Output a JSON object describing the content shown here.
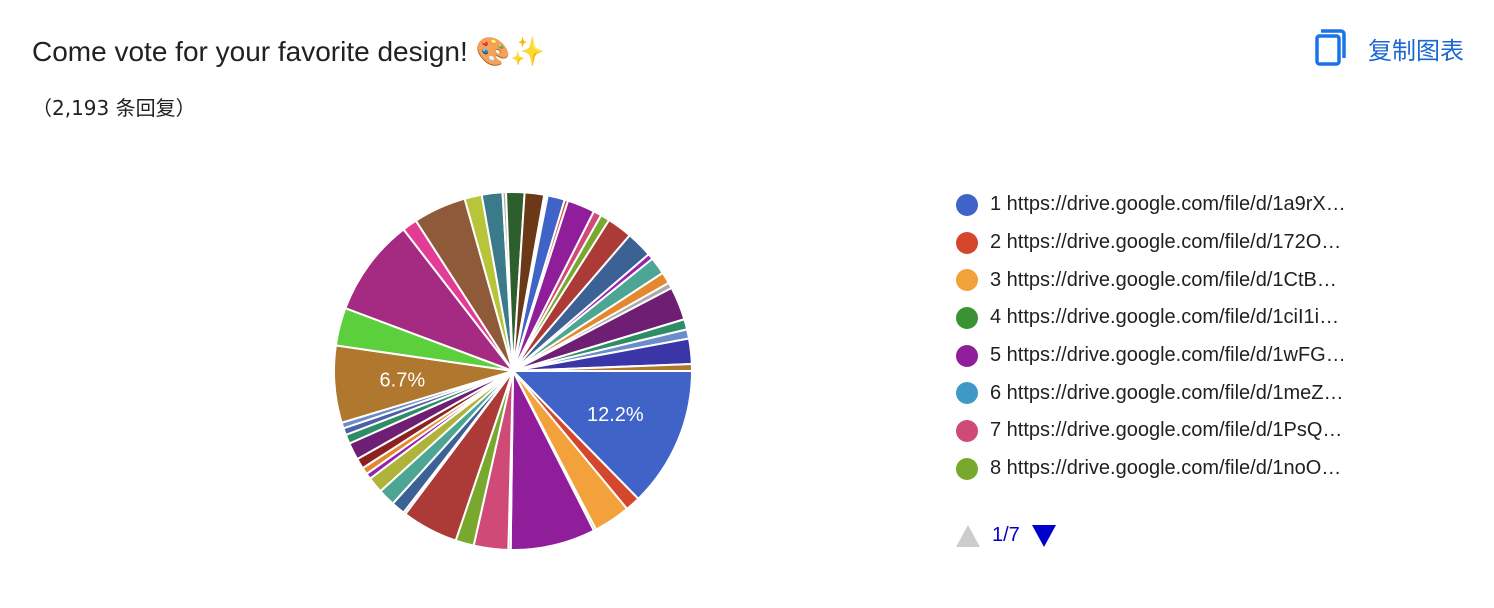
{
  "header": {
    "title": "Come vote for your favorite design! 🎨✨",
    "responses": "（2,193 条回复）",
    "copy_label": "复制图表"
  },
  "icons": {
    "copy": "copy-icon",
    "pager_up": "triangle-up-icon",
    "pager_down": "triangle-down-icon"
  },
  "colors": {
    "accent": "#1a73e8",
    "pager_active": "#0000cc",
    "pager_inactive": "#cccccc"
  },
  "legend": {
    "items": [
      {
        "label": "1 https://drive.google.com/file/d/1a9rX…",
        "color": "#4063c8"
      },
      {
        "label": "2 https://drive.google.com/file/d/172O…",
        "color": "#d4472d"
      },
      {
        "label": "3 https://drive.google.com/file/d/1CtB…",
        "color": "#f2a13b"
      },
      {
        "label": "4 https://drive.google.com/file/d/1ciI1i…",
        "color": "#3a9233"
      },
      {
        "label": "5 https://drive.google.com/file/d/1wFG…",
        "color": "#901d9a"
      },
      {
        "label": "6 https://drive.google.com/file/d/1meZ…",
        "color": "#3f99c6"
      },
      {
        "label": "7 https://drive.google.com/file/d/1PsQ…",
        "color": "#d04a78"
      },
      {
        "label": "8 https://drive.google.com/file/d/1noO…",
        "color": "#79a82e"
      }
    ],
    "pager": "1/7"
  },
  "chart_data": {
    "type": "pie",
    "total_responses": 2193,
    "slices": [
      {
        "value": 12.2,
        "color": "#4063c8",
        "label": "12.2%"
      },
      {
        "value": 1.3,
        "color": "#d4472d"
      },
      {
        "value": 3.2,
        "color": "#f2a13b"
      },
      {
        "value": 0.2,
        "color": "#3a9233"
      },
      {
        "value": 7.4,
        "color": "#901d9a"
      },
      {
        "value": 0.2,
        "color": "#3f99c6"
      },
      {
        "value": 3.0,
        "color": "#d04a78"
      },
      {
        "value": 1.6,
        "color": "#79a82e"
      },
      {
        "value": 4.9,
        "color": "#ac3a37"
      },
      {
        "value": 0.2,
        "color": "#3265a0"
      },
      {
        "value": 1.2,
        "color": "#3c6195"
      },
      {
        "value": 1.5,
        "color": "#4da593"
      },
      {
        "value": 1.4,
        "color": "#b0b33a"
      },
      {
        "value": 0.5,
        "color": "#9424ad"
      },
      {
        "value": 0.6,
        "color": "#e4882f"
      },
      {
        "value": 0.9,
        "color": "#8c2121"
      },
      {
        "value": 1.5,
        "color": "#6e1f73"
      },
      {
        "value": 0.8,
        "color": "#2f8d66"
      },
      {
        "value": 0.6,
        "color": "#4d5fa8"
      },
      {
        "value": 0.5,
        "color": "#6b8cc8"
      },
      {
        "value": 6.7,
        "color": "#b0772e",
        "label": "6.7%"
      },
      {
        "value": 3.3,
        "color": "#5ccf3c"
      },
      {
        "value": 8.5,
        "color": "#a52a82"
      },
      {
        "value": 1.3,
        "color": "#e23c96"
      },
      {
        "value": 4.6,
        "color": "#8f5a3a"
      },
      {
        "value": 1.5,
        "color": "#b8c43a"
      },
      {
        "value": 1.8,
        "color": "#3a7a8a"
      },
      {
        "value": 0.3,
        "color": "#aab2a0"
      },
      {
        "value": 1.6,
        "color": "#2e5e2e"
      },
      {
        "value": 1.7,
        "color": "#6b3818"
      },
      {
        "value": 0.3,
        "color": "#ffffff"
      },
      {
        "value": 1.5,
        "color": "#4063c8"
      },
      {
        "value": 0.3,
        "color": "#d4472d"
      },
      {
        "value": 2.4,
        "color": "#901d9a"
      },
      {
        "value": 0.7,
        "color": "#d04a78"
      },
      {
        "value": 0.8,
        "color": "#79a82e"
      },
      {
        "value": 2.2,
        "color": "#ac3a37"
      },
      {
        "value": 2.3,
        "color": "#3c6195"
      },
      {
        "value": 0.5,
        "color": "#9424ad"
      },
      {
        "value": 1.5,
        "color": "#4da593"
      },
      {
        "value": 1.0,
        "color": "#e4882f"
      },
      {
        "value": 0.5,
        "color": "#aaaaaa"
      },
      {
        "value": 2.9,
        "color": "#6e1f73"
      },
      {
        "value": 0.9,
        "color": "#2f8d66"
      },
      {
        "value": 0.8,
        "color": "#6b8cc8"
      },
      {
        "value": 2.2,
        "color": "#3a36a8"
      },
      {
        "value": 0.6,
        "color": "#b0772e"
      }
    ]
  }
}
